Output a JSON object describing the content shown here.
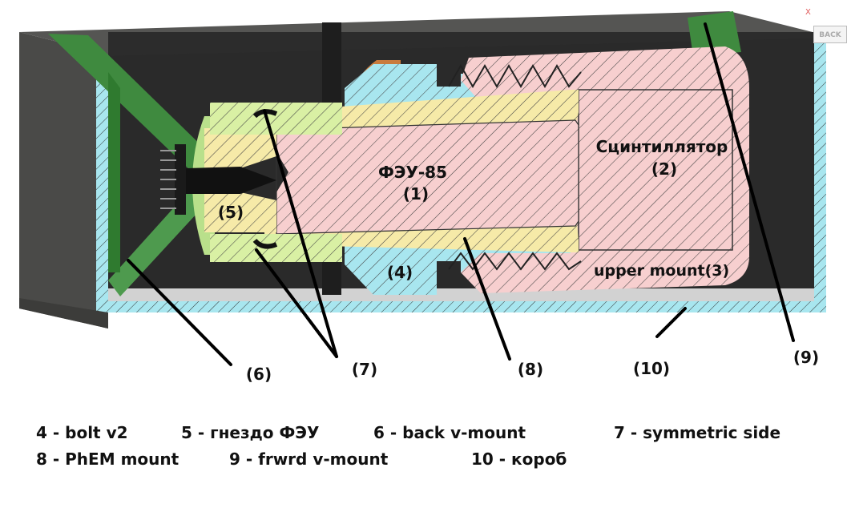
{
  "diagram": {
    "labels": {
      "pmt": "ФЭУ-85",
      "pmt_num": "(1)",
      "scint": "Сцинтиллятор",
      "scint_num": "(2)",
      "upper_mount": "upper mount(3)",
      "bolt_num": "(4)",
      "socket_num": "(5)",
      "callouts": [
        "(6)",
        "(7)",
        "(8)",
        "(9)",
        "(10)"
      ]
    },
    "legend": [
      "4 - bolt v2",
      "5 - гнездо ФЭУ",
      "6 - back v-mount",
      "7 - symmetric side",
      "8 - PhEM mount",
      "9 - frwrd v-mount",
      "10 - короб"
    ],
    "viewcube": {
      "axis": "X",
      "face": "BACK"
    },
    "colors": {
      "pink": "#f7cfcf",
      "yellow": "#f6eaa8",
      "cyan": "#a8e6ef",
      "green_light": "#d9f0a4",
      "green_dark": "#3f8a3f",
      "copper": "#c97b3d",
      "box_dark": "#3a3a3a",
      "floor": "#d2d2d2"
    }
  }
}
